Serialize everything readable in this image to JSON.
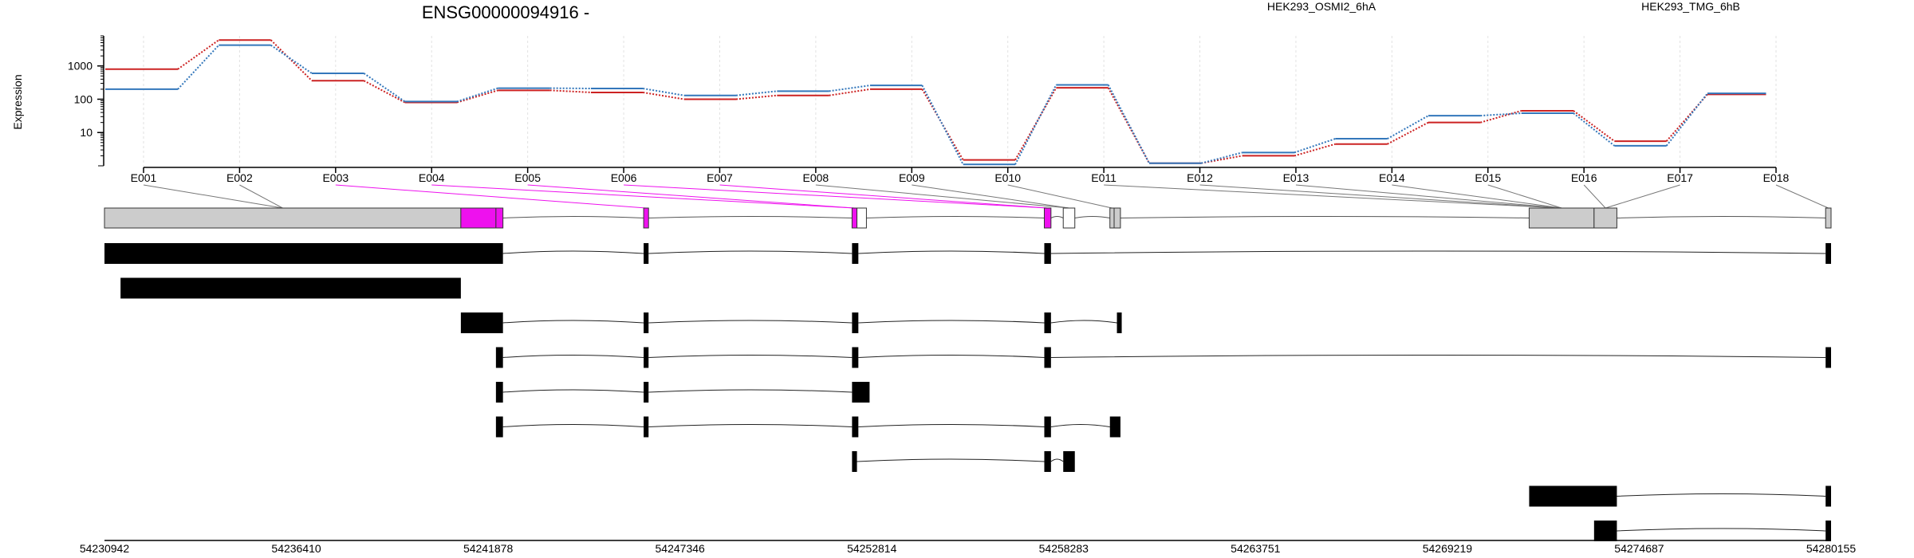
{
  "chart_data": {
    "type": "line",
    "title": "ENSG00000094916 -",
    "ylabel": "Expression",
    "yscale": "log",
    "ylim": [
      1,
      8000
    ],
    "yticks": [
      {
        "v": 10,
        "label": "10"
      },
      {
        "v": 100,
        "label": "100"
      },
      {
        "v": 1000,
        "label": "1000"
      }
    ],
    "categories": [
      "E001",
      "E002",
      "E003",
      "E004",
      "E005",
      "E006",
      "E007",
      "E008",
      "E009",
      "E010",
      "E011",
      "E012",
      "E013",
      "E014",
      "E015",
      "E016",
      "E017",
      "E018"
    ],
    "series": [
      {
        "name": "HEK293_OSMI2_6hA",
        "color": "#cc2222",
        "values": [
          800,
          6000,
          360,
          80,
          185,
          160,
          100,
          130,
          200,
          1.5,
          220,
          1.2,
          2.0,
          4.5,
          20,
          45,
          5.5,
          140
        ]
      },
      {
        "name": "HEK293_TMG_6hB",
        "color": "#3377bb",
        "values": [
          200,
          4200,
          600,
          85,
          215,
          210,
          130,
          175,
          260,
          1.1,
          270,
          1.2,
          2.5,
          6.5,
          32,
          38,
          4.0,
          150
        ]
      }
    ],
    "genomic_axis": {
      "range": [
        54230942,
        54280155
      ],
      "tick_labels": [
        "54230942",
        "54236410",
        "54241878",
        "54247346",
        "54252814",
        "54258283",
        "54263751",
        "54269219",
        "54274687",
        "54280155"
      ]
    },
    "gene_model": {
      "highlight_color": "#ee11ee",
      "exon_fill": "#cccccc",
      "exon_row": [
        {
          "s": 54230942,
          "e": 54241100,
          "f": "gray"
        },
        {
          "s": 54241100,
          "e": 54242100,
          "f": "mag"
        },
        {
          "s": 54242100,
          "e": 54242300,
          "f": "mag"
        },
        {
          "s": 54246310,
          "e": 54246450,
          "f": "mag"
        },
        {
          "s": 54252250,
          "e": 54252390,
          "f": "mag"
        },
        {
          "s": 54252390,
          "e": 54252660,
          "f": "white"
        },
        {
          "s": 54257730,
          "e": 54257920,
          "f": "mag"
        },
        {
          "s": 54258270,
          "e": 54258600,
          "f": "white"
        },
        {
          "s": 54259600,
          "e": 54259720,
          "f": "gray"
        },
        {
          "s": 54259720,
          "e": 54259900,
          "f": "gray"
        },
        {
          "s": 54271550,
          "e": 54273400,
          "f": "gray"
        },
        {
          "s": 54273400,
          "e": 54274050,
          "f": "gray"
        },
        {
          "s": 54280000,
          "e": 54280155,
          "f": "gray"
        }
      ],
      "exon_bin_of_label": [
        0,
        0,
        3,
        4,
        4,
        6,
        6,
        7,
        7,
        8,
        10,
        10,
        10,
        10,
        10,
        11,
        11,
        12
      ],
      "transcripts": [
        [
          [
            54230942,
            54242300
          ],
          [
            54246310,
            54246450
          ],
          [
            54252250,
            54252430
          ],
          [
            54257730,
            54257920
          ],
          [
            54280000,
            54280155
          ]
        ],
        [
          [
            54231400,
            54241100
          ]
        ],
        [
          [
            54241100,
            54242300
          ],
          [
            54246310,
            54246450
          ],
          [
            54252250,
            54252430
          ],
          [
            54257730,
            54257920
          ],
          [
            54259800,
            54259900
          ]
        ],
        [
          [
            54242100,
            54242300
          ],
          [
            54246310,
            54246450
          ],
          [
            54252250,
            54252430
          ],
          [
            54257730,
            54257920
          ],
          [
            54280000,
            54280155
          ]
        ],
        [
          [
            54242100,
            54242300
          ],
          [
            54246310,
            54246450
          ],
          [
            54252250,
            54252750
          ]
        ],
        [
          [
            54242100,
            54242300
          ],
          [
            54246310,
            54246450
          ],
          [
            54252250,
            54252430
          ],
          [
            54257730,
            54257920
          ],
          [
            54259600,
            54259900
          ]
        ],
        [
          [
            54252250,
            54252390
          ],
          [
            54257730,
            54257920
          ],
          [
            54258270,
            54258600
          ]
        ],
        [
          [
            54271550,
            54274050
          ],
          [
            54280000,
            54280155
          ]
        ],
        [
          [
            54273400,
            54274050
          ],
          [
            54280000,
            54280155
          ]
        ]
      ]
    }
  }
}
